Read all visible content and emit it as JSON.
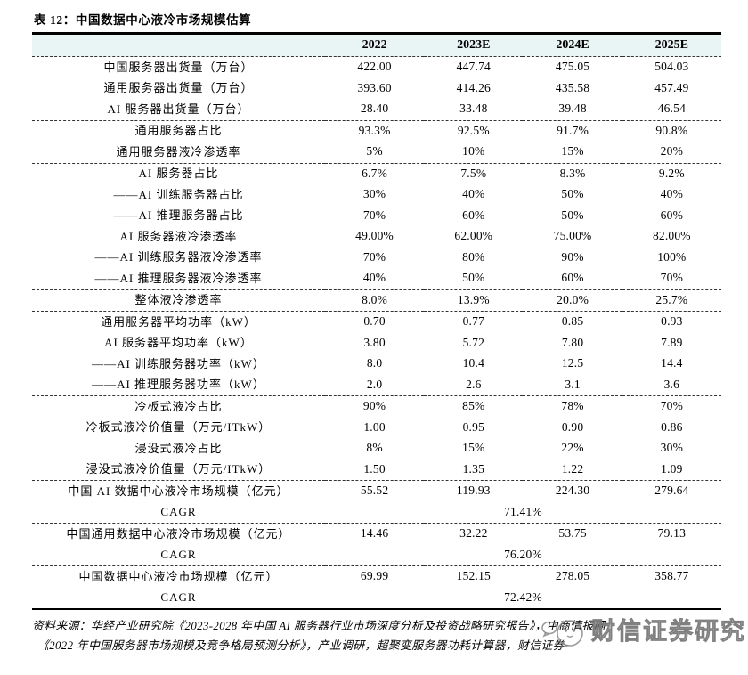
{
  "title": "表 12：中国数据中心液冷市场规模估算",
  "colors": {
    "header_bg": "#e9f4f5",
    "rule": "#000000",
    "watermark_gray": "#8f8f8f"
  },
  "icons": {
    "watermark_icon": "chat-bubble-face-icon"
  },
  "table": {
    "columns": [
      "2022",
      "2023E",
      "2024E",
      "2025E"
    ],
    "groups": [
      {
        "rows": [
          {
            "label": "中国服务器出货量（万台）",
            "values": [
              "422.00",
              "447.74",
              "475.05",
              "504.03"
            ]
          },
          {
            "label": "通用服务器出货量（万台）",
            "values": [
              "393.60",
              "414.26",
              "435.58",
              "457.49"
            ]
          },
          {
            "label": "AI 服务器出货量（万台）",
            "values": [
              "28.40",
              "33.48",
              "39.48",
              "46.54"
            ]
          }
        ]
      },
      {
        "rows": [
          {
            "label": "通用服务器占比",
            "values": [
              "93.3%",
              "92.5%",
              "91.7%",
              "90.8%"
            ]
          },
          {
            "label": "通用服务器液冷渗透率",
            "values": [
              "5%",
              "10%",
              "15%",
              "20%"
            ]
          }
        ]
      },
      {
        "rows": [
          {
            "label": "AI 服务器占比",
            "values": [
              "6.7%",
              "7.5%",
              "8.3%",
              "9.2%"
            ]
          },
          {
            "label": "——AI 训练服务器占比",
            "values": [
              "30%",
              "40%",
              "50%",
              "40%"
            ]
          },
          {
            "label": "——AI 推理服务器占比",
            "values": [
              "70%",
              "60%",
              "50%",
              "60%"
            ]
          },
          {
            "label": "AI 服务器液冷渗透率",
            "values": [
              "49.00%",
              "62.00%",
              "75.00%",
              "82.00%"
            ]
          },
          {
            "label": "——AI 训练服务器液冷渗透率",
            "values": [
              "70%",
              "80%",
              "90%",
              "100%"
            ]
          },
          {
            "label": "——AI 推理服务器液冷渗透率",
            "values": [
              "40%",
              "50%",
              "60%",
              "70%"
            ]
          }
        ]
      },
      {
        "rows": [
          {
            "label": "整体液冷渗透率",
            "values": [
              "8.0%",
              "13.9%",
              "20.0%",
              "25.7%"
            ]
          }
        ]
      },
      {
        "rows": [
          {
            "label": "通用服务器平均功率（kW）",
            "values": [
              "0.70",
              "0.77",
              "0.85",
              "0.93"
            ]
          },
          {
            "label": "AI 服务器平均功率（kW）",
            "values": [
              "3.80",
              "5.72",
              "7.80",
              "7.89"
            ]
          },
          {
            "label": "——AI 训练服务器功率（kW）",
            "values": [
              "8.0",
              "10.4",
              "12.5",
              "14.4"
            ]
          },
          {
            "label": "——AI 推理服务器功率（kW）",
            "values": [
              "2.0",
              "2.6",
              "3.1",
              "3.6"
            ]
          }
        ]
      },
      {
        "rows": [
          {
            "label": "冷板式液冷占比",
            "values": [
              "90%",
              "85%",
              "78%",
              "70%"
            ]
          },
          {
            "label": "冷板式液冷价值量（万元/ITkW）",
            "values": [
              "1.00",
              "0.95",
              "0.90",
              "0.86"
            ]
          },
          {
            "label": "浸没式液冷占比",
            "values": [
              "8%",
              "15%",
              "22%",
              "30%"
            ]
          },
          {
            "label": "浸没式液冷价值量（万元/ITkW）",
            "values": [
              "1.50",
              "1.35",
              "1.22",
              "1.09"
            ]
          }
        ]
      },
      {
        "rows": [
          {
            "label": "中国 AI 数据中心液冷市场规模（亿元）",
            "values": [
              "55.52",
              "119.93",
              "224.30",
              "279.64"
            ]
          },
          {
            "label": "CAGR",
            "type": "cagr",
            "value": "71.41%"
          }
        ]
      },
      {
        "rows": [
          {
            "label": "中国通用数据中心液冷市场规模（亿元）",
            "values": [
              "14.46",
              "32.22",
              "53.75",
              "79.13"
            ]
          },
          {
            "label": "CAGR",
            "type": "cagr",
            "value": "76.20%"
          }
        ]
      },
      {
        "rows": [
          {
            "label": "中国数据中心液冷市场规模（亿元）",
            "values": [
              "69.99",
              "152.15",
              "278.05",
              "358.77"
            ]
          },
          {
            "label": "CAGR",
            "type": "cagr",
            "value": "72.42%"
          }
        ]
      }
    ]
  },
  "source": {
    "line1": "资料来源：华经产业研究院《2023-2028 年中国 AI 服务器行业市场深度分析及投资战略研究报告》，中商情报网",
    "line2": "《2022 年中国服务器市场规模及竞争格局预测分析》，产业调研，超聚变服务器功耗计算器，财信证券"
  },
  "watermark": {
    "text": "财信证券研究"
  }
}
